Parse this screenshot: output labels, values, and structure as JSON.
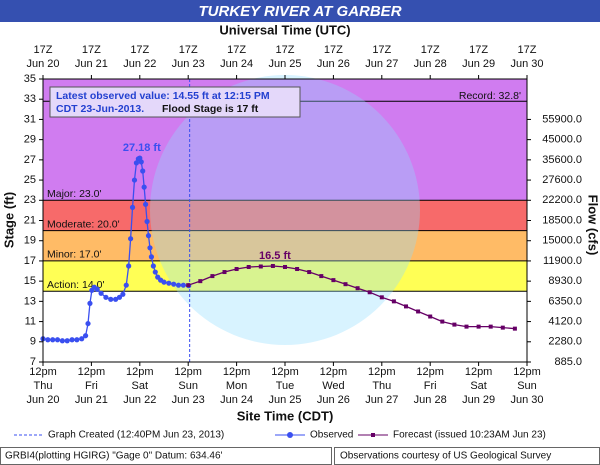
{
  "chart_data": {
    "type": "hydrograph",
    "title": "TURKEY RIVER AT GARBER",
    "top_axis_title": "Universal Time (UTC)",
    "x_axis_title": "Site Time (CDT)",
    "y_axis_title": "Stage (ft)",
    "y2_axis_title": "Flow (cfs)",
    "info_text": "Latest observed value: 14.55 ft at 12:15 PM",
    "info_text_2": "CDT 23-Jun-2013.",
    "info_flood": "Flood Stage is 17 ft",
    "xlim": [
      20.5,
      30.5
    ],
    "xticks": [
      {
        "value": 20.5,
        "label": [
          "12pm",
          "Thu",
          "Jun 20"
        ]
      },
      {
        "value": 21.5,
        "label": [
          "12pm",
          "Fri",
          "Jun 21"
        ]
      },
      {
        "value": 22.5,
        "label": [
          "12pm",
          "Sat",
          "Jun 22"
        ]
      },
      {
        "value": 23.5,
        "label": [
          "12pm",
          "Sun",
          "Jun 23"
        ]
      },
      {
        "value": 24.5,
        "label": [
          "12pm",
          "Mon",
          "Jun 24"
        ]
      },
      {
        "value": 25.5,
        "label": [
          "12pm",
          "Tue",
          "Jun 25"
        ]
      },
      {
        "value": 26.5,
        "label": [
          "12pm",
          "Wed",
          "Jun 26"
        ]
      },
      {
        "value": 27.5,
        "label": [
          "12pm",
          "Thu",
          "Jun 27"
        ]
      },
      {
        "value": 28.5,
        "label": [
          "12pm",
          "Fri",
          "Jun 28"
        ]
      },
      {
        "value": 29.5,
        "label": [
          "12pm",
          "Sat",
          "Jun 29"
        ]
      },
      {
        "value": 30.5,
        "label": [
          "12pm",
          "Sun",
          "Jun 30"
        ]
      }
    ],
    "top_xticks": [
      {
        "value": 20.5,
        "label": [
          "17Z",
          "Jun 20"
        ]
      },
      {
        "value": 21.5,
        "label": [
          "17Z",
          "Jun 21"
        ]
      },
      {
        "value": 22.5,
        "label": [
          "17Z",
          "Jun 22"
        ]
      },
      {
        "value": 23.5,
        "label": [
          "17Z",
          "Jun 23"
        ]
      },
      {
        "value": 24.5,
        "label": [
          "17Z",
          "Jun 24"
        ]
      },
      {
        "value": 25.5,
        "label": [
          "17Z",
          "Jun 25"
        ]
      },
      {
        "value": 26.5,
        "label": [
          "17Z",
          "Jun 26"
        ]
      },
      {
        "value": 27.5,
        "label": [
          "17Z",
          "Jun 27"
        ]
      },
      {
        "value": 28.5,
        "label": [
          "17Z",
          "Jun 28"
        ]
      },
      {
        "value": 29.5,
        "label": [
          "17Z",
          "Jun 29"
        ]
      },
      {
        "value": 30.5,
        "label": [
          "17Z",
          "Jun 30"
        ]
      }
    ],
    "ylim": [
      7,
      35
    ],
    "yticks": [
      7,
      9,
      11,
      13,
      15,
      17,
      19,
      21,
      23,
      25,
      27,
      29,
      31,
      33,
      35
    ],
    "y2ticks": [
      {
        "value": 885,
        "label": "885.0",
        "stage": 7
      },
      {
        "value": 2280,
        "label": "2280.0",
        "stage": 9
      },
      {
        "value": 4120,
        "label": "4120.0",
        "stage": 11
      },
      {
        "value": 6350,
        "label": "6350.0",
        "stage": 13
      },
      {
        "value": 8930,
        "label": "8930.0",
        "stage": 15
      },
      {
        "value": 11900,
        "label": "11900.0",
        "stage": 17
      },
      {
        "value": 15000,
        "label": "15000.0",
        "stage": 19
      },
      {
        "value": 18500,
        "label": "18500.0",
        "stage": 21
      },
      {
        "value": 22200,
        "label": "22200.0",
        "stage": 23
      },
      {
        "value": 27600,
        "label": "27600.0",
        "stage": 25
      },
      {
        "value": 35600,
        "label": "35600.0",
        "stage": 27
      },
      {
        "value": 45000,
        "label": "45000.0",
        "stage": 29
      },
      {
        "value": 55900,
        "label": "55900.0",
        "stage": 31
      }
    ],
    "flood_levels": [
      {
        "value": 14,
        "label": "Action: 14.0'",
        "color": "#ffff55"
      },
      {
        "value": 17,
        "label": "Minor: 17.0'",
        "color": "#ffbb66"
      },
      {
        "value": 20,
        "label": "Moderate: 20.0'",
        "color": "#f76a6a"
      },
      {
        "value": 23,
        "label": "Major: 23.0'",
        "color": "#d07cf0"
      }
    ],
    "record": {
      "value": 32.8,
      "label": "Record: 32.8'"
    },
    "created": {
      "x": 23.53,
      "label": "Graph Created (12:40PM Jun 23, 2013)"
    },
    "series": [
      {
        "name": "Observed",
        "color": "#3a4ff0",
        "marker": "circle",
        "x": [
          20.5,
          20.6,
          20.7,
          20.8,
          20.9,
          21.0,
          21.1,
          21.2,
          21.3,
          21.38,
          21.43,
          21.47,
          21.51,
          21.56,
          21.62,
          21.7,
          21.8,
          21.9,
          22.0,
          22.08,
          22.15,
          22.22,
          22.27,
          22.31,
          22.35,
          22.39,
          22.43,
          22.47,
          22.5,
          22.53,
          22.56,
          22.59,
          22.62,
          22.65,
          22.68,
          22.71,
          22.74,
          22.78,
          22.82,
          22.87,
          22.93,
          23.0,
          23.1,
          23.2,
          23.3,
          23.4,
          23.51
        ],
        "y": [
          9.3,
          9.2,
          9.2,
          9.2,
          9.1,
          9.1,
          9.2,
          9.2,
          9.3,
          9.6,
          10.8,
          12.8,
          14.1,
          14.4,
          14.2,
          13.8,
          13.4,
          13.2,
          13.2,
          13.4,
          13.7,
          14.6,
          16.5,
          19.2,
          22.3,
          25.0,
          26.7,
          27.1,
          27.18,
          26.8,
          25.9,
          24.3,
          22.6,
          20.9,
          19.5,
          18.3,
          17.4,
          16.5,
          15.9,
          15.4,
          15.1,
          14.9,
          14.8,
          14.7,
          14.6,
          14.6,
          14.55
        ]
      },
      {
        "name": "Forecast (issued 10:23AM Jun 23)",
        "color": "#660066",
        "marker": "square",
        "x": [
          23.5,
          23.75,
          24.0,
          24.25,
          24.5,
          24.75,
          25.0,
          25.25,
          25.5,
          25.75,
          26.0,
          26.25,
          26.5,
          26.75,
          27.0,
          27.25,
          27.5,
          27.75,
          28.0,
          28.25,
          28.5,
          28.75,
          29.0,
          29.25,
          29.5,
          29.75,
          30.0,
          30.25
        ],
        "y": [
          14.6,
          15.0,
          15.5,
          15.9,
          16.2,
          16.4,
          16.45,
          16.5,
          16.4,
          16.2,
          15.9,
          15.5,
          15.1,
          14.7,
          14.3,
          13.9,
          13.4,
          13.0,
          12.5,
          12.0,
          11.5,
          11.0,
          10.7,
          10.5,
          10.5,
          10.5,
          10.4,
          10.3
        ]
      }
    ],
    "annotations": [
      "27.18 ft",
      "16.5 ft"
    ],
    "footer_left": "GRBI4(plotting HGIRG) \"Gage 0\" Datum: 634.46'",
    "footer_right": "Observations courtesy of US Geological Survey"
  }
}
